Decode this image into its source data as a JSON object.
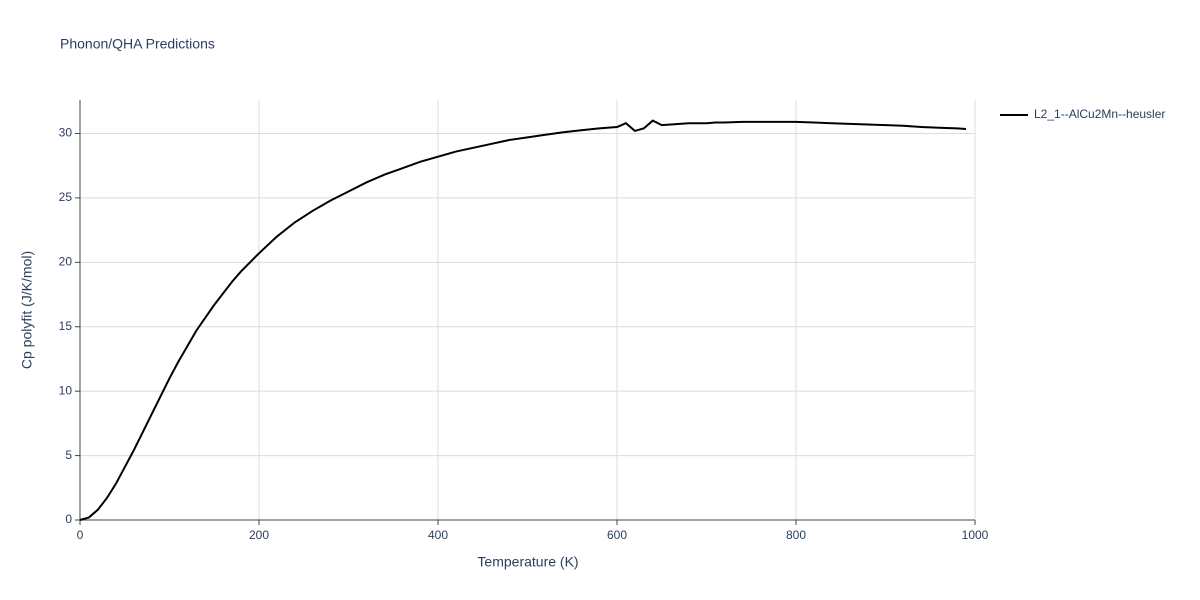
{
  "chart_data": {
    "type": "line",
    "title": "Phonon/QHA Predictions",
    "x_label": "Temperature (K)",
    "y_label": "Cp polyfit (J/K/mol)",
    "x": [
      0,
      10,
      20,
      30,
      40,
      50,
      60,
      70,
      80,
      90,
      100,
      110,
      120,
      130,
      140,
      150,
      160,
      170,
      180,
      190,
      200,
      220,
      240,
      260,
      280,
      300,
      320,
      340,
      360,
      380,
      400,
      420,
      440,
      460,
      480,
      500,
      520,
      540,
      560,
      580,
      600,
      610,
      620,
      630,
      640,
      650,
      660,
      680,
      700,
      710,
      720,
      740,
      760,
      780,
      800,
      820,
      840,
      860,
      880,
      900,
      920,
      940,
      960,
      980,
      990
    ],
    "series": [
      {
        "name": "L2_1--AlCu2Mn--heusler",
        "color": "#000000",
        "values": [
          0,
          0.2,
          0.8,
          1.7,
          2.8,
          4.1,
          5.4,
          6.8,
          8.2,
          9.6,
          11.0,
          12.3,
          13.5,
          14.7,
          15.7,
          16.7,
          17.6,
          18.5,
          19.3,
          20.0,
          20.7,
          22.0,
          23.1,
          24.0,
          24.8,
          25.5,
          26.2,
          26.8,
          27.3,
          27.8,
          28.2,
          28.6,
          28.9,
          29.2,
          29.5,
          29.7,
          29.9,
          30.1,
          30.25,
          30.4,
          30.5,
          30.8,
          30.2,
          30.4,
          31.0,
          30.65,
          30.7,
          30.8,
          30.8,
          30.85,
          30.85,
          30.9,
          30.9,
          30.9,
          30.9,
          30.85,
          30.8,
          30.75,
          30.7,
          30.65,
          30.6,
          30.5,
          30.45,
          30.4,
          30.35
        ]
      }
    ],
    "xlim": [
      0,
      1000
    ],
    "xticks": [
      0,
      200,
      400,
      600,
      800,
      1000
    ],
    "ylim": [
      0,
      32.6
    ],
    "yticks": [
      0,
      5,
      10,
      15,
      20,
      25,
      30
    ],
    "grid": true,
    "legend": "right"
  }
}
